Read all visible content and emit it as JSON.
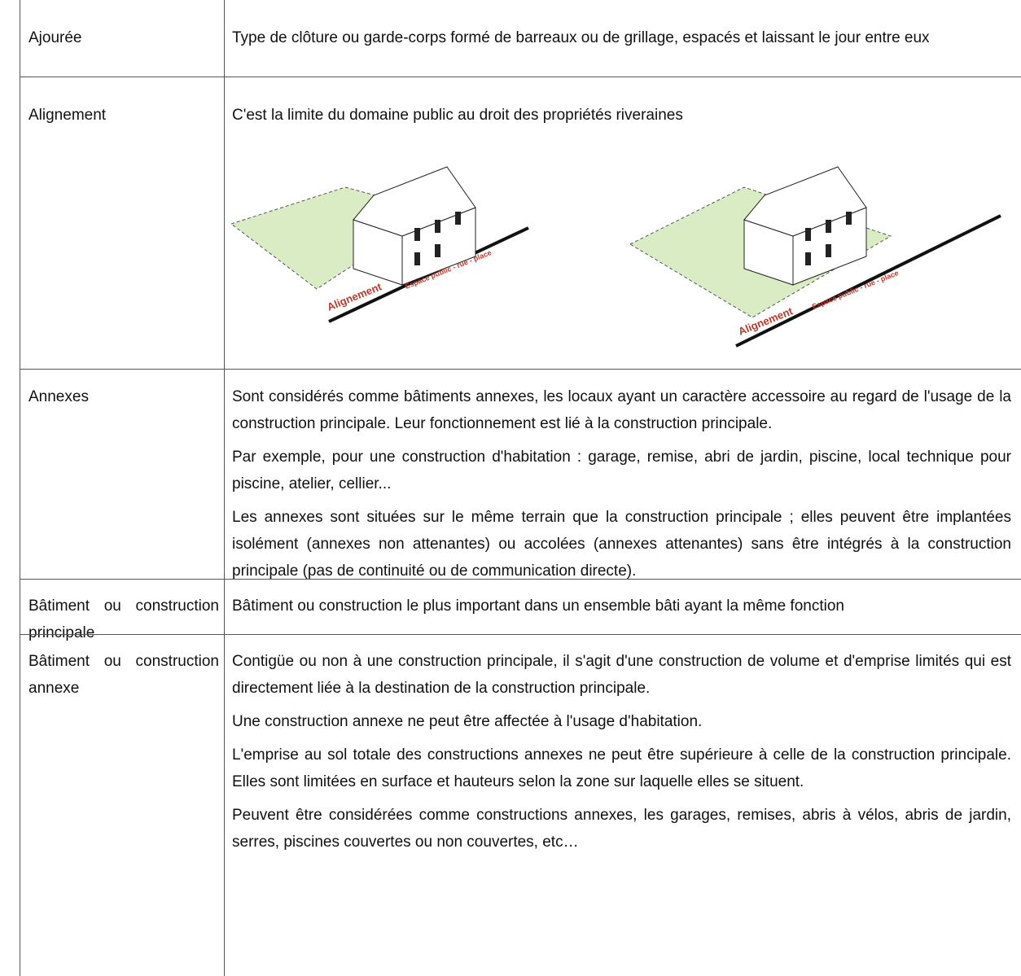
{
  "rows": [
    {
      "term": "Ajourée",
      "paragraphs": [
        "Type de clôture ou garde-corps formé de barreaux ou de grillage, espacés et laissant le jour entre eux"
      ]
    },
    {
      "term": "Alignement",
      "paragraphs": [
        "C'est la limite du domaine public au droit des propriétés riveraines"
      ],
      "figure_labels": [
        "Alignement",
        "Espace public - rue - place",
        "Alignement",
        "Espace public - rue - place"
      ]
    },
    {
      "term": "Annexes",
      "paragraphs": [
        "Sont considérés comme bâtiments annexes, les locaux ayant un caractère accessoire au regard de l'usage de la construction principale. Leur fonctionnement est lié à la construction principale.",
        "Par exemple, pour une construction d'habitation : garage, remise, abri de jardin, piscine, local technique pour piscine, atelier, cellier...",
        "Les annexes sont situées sur le même terrain que la construction principale ; elles peuvent être implantées isolément (annexes non attenantes) ou accolées (annexes attenantes) sans être intégrés à la construction principale (pas de continuité ou de communication directe)."
      ]
    },
    {
      "term": "Bâtiment ou construction principale",
      "paragraphs": [
        "Bâtiment ou construction le plus important dans un ensemble bâti ayant la même fonction"
      ]
    },
    {
      "term": "Bâtiment ou construction annexe",
      "paragraphs": [
        "Contigüe ou non à une construction principale, il s'agit d'une construction de volume et d'emprise limités qui est directement liée à la destination de la construction principale.",
        "Une construction annexe ne peut être affectée à l'usage d'habitation.",
        "L'emprise au sol totale des constructions annexes ne peut être supérieure à celle de la construction principale. Elles sont limitées en surface et hauteurs selon la zone sur laquelle elles se situent.",
        "Peuvent être considérées comme constructions annexes, les garages, remises, abris à vélos, abris de jardin, serres, piscines couvertes ou non couvertes, etc…"
      ]
    }
  ]
}
